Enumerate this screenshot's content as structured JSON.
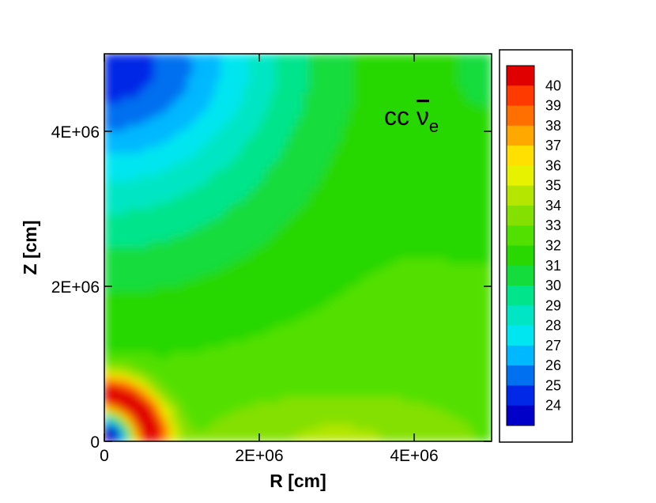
{
  "chart_data": {
    "type": "heatmap",
    "title": "",
    "annotation": {
      "base": "cc ",
      "symbol": "ν",
      "subscript": "e"
    },
    "xlabel": "R [cm]",
    "ylabel": "Z [cm]",
    "xlim": [
      0,
      5000000
    ],
    "ylim": [
      0,
      5000000
    ],
    "x_ticks": [
      {
        "value": 0,
        "label": "0"
      },
      {
        "value": 2000000,
        "label": "2E+06"
      },
      {
        "value": 4000000,
        "label": "4E+06"
      }
    ],
    "y_ticks": [
      {
        "value": 0,
        "label": "0"
      },
      {
        "value": 2000000,
        "label": "2E+06"
      },
      {
        "value": 4000000,
        "label": "4E+06"
      }
    ],
    "colorbar": {
      "levels": [
        40,
        39,
        38,
        37,
        36,
        35,
        34,
        33,
        32,
        31,
        30,
        29,
        28,
        27,
        26,
        25,
        24
      ],
      "colors": [
        "#e00000",
        "#ff3a00",
        "#ff7000",
        "#ffa800",
        "#ffe000",
        "#e6f200",
        "#b4e600",
        "#84e000",
        "#52e000",
        "#28d800",
        "#14dc3c",
        "#00e48c",
        "#00e6c4",
        "#00e6f0",
        "#00b8ff",
        "#0070f0",
        "#0028e6",
        "#0000c8"
      ]
    },
    "grid": false,
    "legend": "colorbar-right"
  }
}
